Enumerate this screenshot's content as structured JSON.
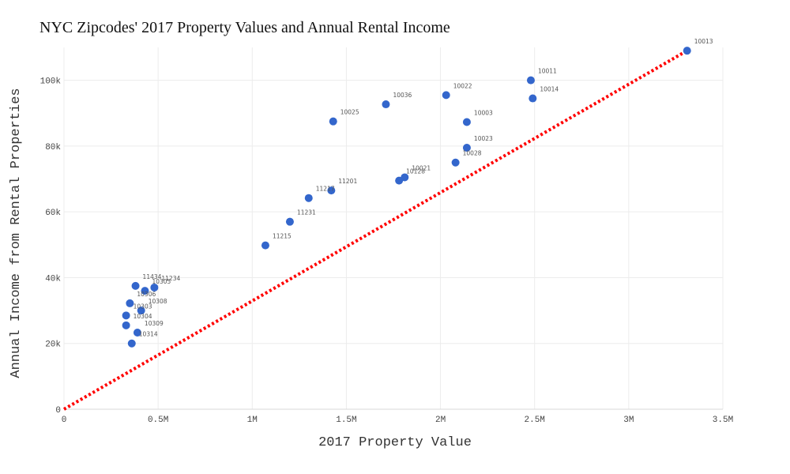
{
  "chart_data": {
    "type": "scatter",
    "title": "NYC Zipcodes' 2017 Property Values and Annual Rental Income",
    "xlabel": "2017 Property Value",
    "ylabel": "Annual Income from Rental Properties",
    "xlim": [
      0,
      3500000
    ],
    "ylim": [
      0,
      110000
    ],
    "x_ticks": [
      0,
      500000,
      1000000,
      1500000,
      2000000,
      2500000,
      3000000,
      3500000
    ],
    "x_tick_labels": [
      "0",
      "0.5M",
      "1M",
      "1.5M",
      "2M",
      "2.5M",
      "3M",
      "3.5M"
    ],
    "y_ticks": [
      0,
      20000,
      40000,
      60000,
      80000,
      100000
    ],
    "y_tick_labels": [
      "0",
      "20k",
      "40k",
      "60k",
      "80k",
      "100k"
    ],
    "grid": true,
    "marker_color": "#3366cc",
    "reference_line": {
      "color": "#ff0000",
      "style": "dotted",
      "from": [
        0,
        0
      ],
      "to": [
        3310000,
        109000
      ]
    },
    "points": [
      {
        "label": "10013",
        "x": 3310000,
        "y": 109000
      },
      {
        "label": "10011",
        "x": 2480000,
        "y": 100000
      },
      {
        "label": "10014",
        "x": 2490000,
        "y": 94500
      },
      {
        "label": "10022",
        "x": 2030000,
        "y": 95500
      },
      {
        "label": "10036",
        "x": 1710000,
        "y": 92700
      },
      {
        "label": "10025",
        "x": 1430000,
        "y": 87500
      },
      {
        "label": "10003",
        "x": 2140000,
        "y": 87300
      },
      {
        "label": "10023",
        "x": 2140000,
        "y": 79500
      },
      {
        "label": "10028",
        "x": 2080000,
        "y": 75000
      },
      {
        "label": "10021",
        "x": 1810000,
        "y": 70500
      },
      {
        "label": "10128",
        "x": 1780000,
        "y": 69500
      },
      {
        "label": "11201",
        "x": 1420000,
        "y": 66500
      },
      {
        "label": "11217",
        "x": 1300000,
        "y": 64200
      },
      {
        "label": "11231",
        "x": 1200000,
        "y": 57000
      },
      {
        "label": "11215",
        "x": 1070000,
        "y": 49800
      },
      {
        "label": "11434",
        "x": 380000,
        "y": 37500
      },
      {
        "label": "11234",
        "x": 480000,
        "y": 37000
      },
      {
        "label": "10305",
        "x": 430000,
        "y": 36000
      },
      {
        "label": "10306",
        "x": 350000,
        "y": 32200
      },
      {
        "label": "10308",
        "x": 410000,
        "y": 30000
      },
      {
        "label": "10303",
        "x": 330000,
        "y": 28500
      },
      {
        "label": "10304",
        "x": 330000,
        "y": 25500
      },
      {
        "label": "10309",
        "x": 390000,
        "y": 23300
      },
      {
        "label": "10314",
        "x": 360000,
        "y": 20000
      }
    ]
  }
}
